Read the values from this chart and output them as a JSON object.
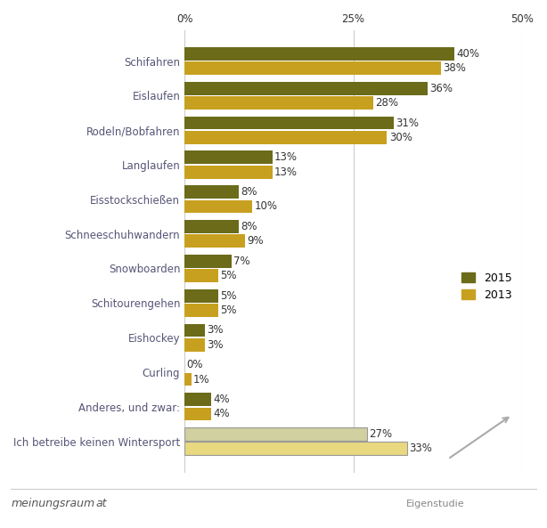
{
  "categories": [
    "Schifahren",
    "Eislaufen",
    "Rodeln/Bobfahren",
    "Langlaufen",
    "Eisstockschießen",
    "Schneeschuhwandern",
    "Snowboarden",
    "Schitourengehen",
    "Eishockey",
    "Curling",
    "Anderes, und zwar:",
    "Ich betreibe keinen Wintersport"
  ],
  "values_2015": [
    40,
    36,
    31,
    13,
    8,
    8,
    7,
    5,
    3,
    0,
    4,
    27
  ],
  "values_2013": [
    38,
    28,
    30,
    13,
    10,
    9,
    5,
    5,
    3,
    1,
    4,
    33
  ],
  "color_2015": "#6b6b1a",
  "color_2013": "#c8a020",
  "color_last_2015": "#d0d0a0",
  "color_last_2013": "#e8d880",
  "xlim": [
    0,
    50
  ],
  "xticks": [
    0,
    25,
    50
  ],
  "xtick_labels": [
    "0%",
    "25%",
    "50%"
  ],
  "bar_height": 0.38,
  "bar_gap": 0.04,
  "title": "",
  "legend_2015": "2015",
  "legend_2013": "2013",
  "background_color": "#ffffff",
  "grid_color": "#cccccc",
  "arrow_color": "#aaaaaa",
  "label_fontsize": 8.5,
  "tick_fontsize": 8.5,
  "legend_fontsize": 9
}
